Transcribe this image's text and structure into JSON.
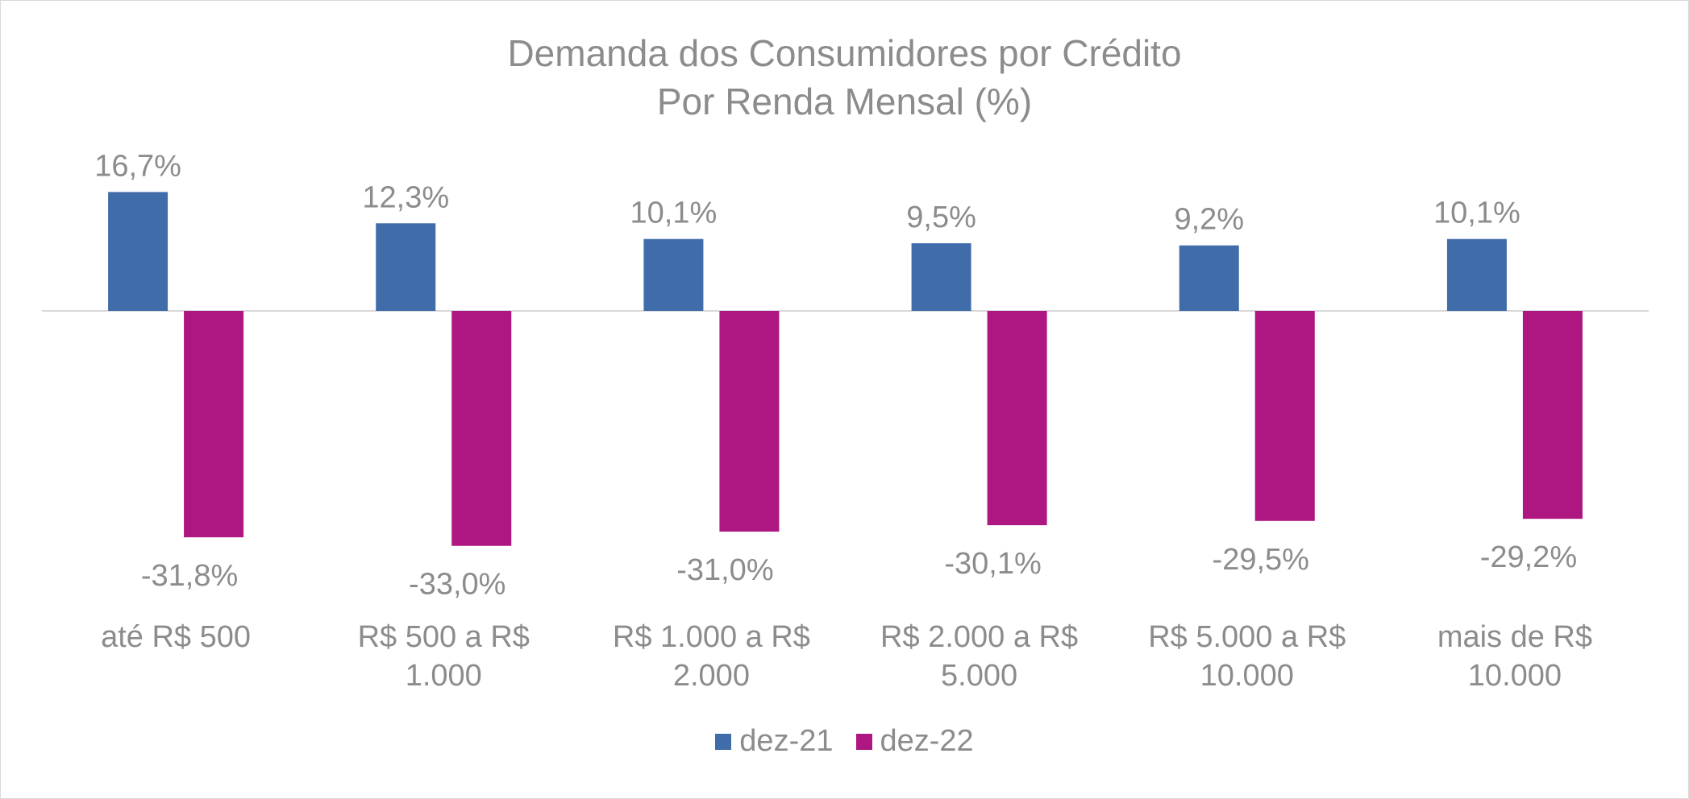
{
  "chart_data": {
    "type": "bar",
    "title": "Demanda dos Consumidores por Crédito",
    "subtitle": "Por Renda Mensal (%)",
    "categories": [
      [
        "até R$ 500"
      ],
      [
        "R$ 500 a R$",
        "1.000"
      ],
      [
        "R$ 1.000 a R$",
        "2.000"
      ],
      [
        "R$ 2.000 a R$",
        "5.000"
      ],
      [
        "R$ 5.000 a R$",
        "10.000"
      ],
      [
        "mais de R$",
        "10.000"
      ]
    ],
    "series": [
      {
        "name": "dez-21",
        "color": "#416CAA",
        "values": [
          16.7,
          12.3,
          10.1,
          9.5,
          9.2,
          10.1
        ],
        "labels": [
          "16,7%",
          "12,3%",
          "10,1%",
          "9,5%",
          "9,2%",
          "10,1%"
        ]
      },
      {
        "name": "dez-22",
        "color": "#AE1681",
        "values": [
          -31.8,
          -33.0,
          -31.0,
          -30.1,
          -29.5,
          -29.2
        ],
        "labels": [
          "-31,8%",
          "-33,0%",
          "-31,0%",
          "-30,1%",
          "-29,5%",
          "-29,2%"
        ]
      }
    ],
    "ylim": [
      -35,
      20
    ],
    "grid": false,
    "legend_position": "bottom",
    "xlabel": "",
    "ylabel": ""
  }
}
